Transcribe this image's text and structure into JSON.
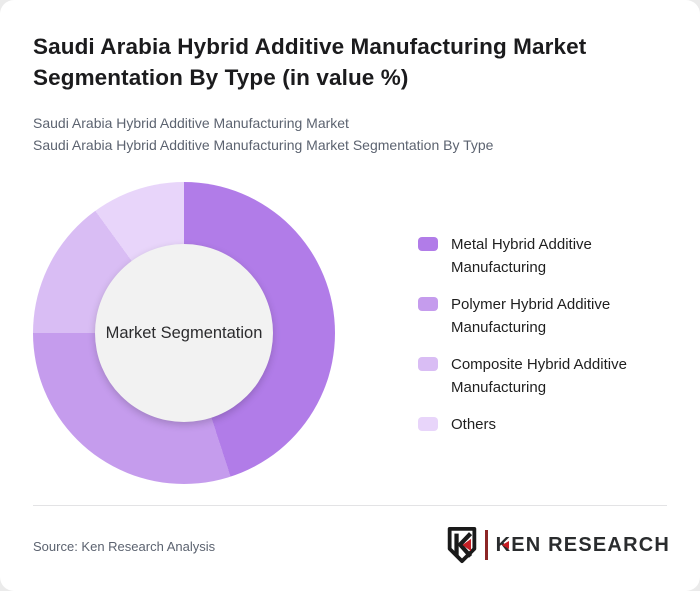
{
  "header": {
    "title": "Saudi Arabia Hybrid Additive Manufacturing Market Segmentation By Type (in value %)",
    "subtitle_line1": "Saudi Arabia Hybrid Additive Manufacturing Market",
    "subtitle_line2": "Saudi Arabia Hybrid Additive Manufacturing Market Segmentation By Type"
  },
  "chart_data": {
    "type": "pie",
    "variant": "donut",
    "title": "Saudi Arabia Hybrid Additive Manufacturing Market Segmentation By Type (in value %)",
    "unit": "value %",
    "center_label": "Market Segmentation",
    "legend_position": "right",
    "start_angle_deg": 0,
    "direction": "clockwise",
    "segments": [
      {
        "label": "Metal Hybrid Additive Manufacturing",
        "value": 45,
        "color": "#b17ce8"
      },
      {
        "label": "Polymer Hybrid Additive Manufacturing",
        "value": 30,
        "color": "#c59ced"
      },
      {
        "label": "Composite Hybrid Additive Manufacturing",
        "value": 15,
        "color": "#d9bdf4"
      },
      {
        "label": "Others",
        "value": 10,
        "color": "#e8d5fa"
      }
    ],
    "hole_color": "#f2f2f2"
  },
  "footer": {
    "source": "Source: Ken Research Analysis",
    "logo_text": "KEN RESEARCH"
  },
  "colors": {
    "card_background": "#ffffff",
    "page_background": "#ebebeb",
    "title_text": "#1b1b1d",
    "subtitle_text": "#5c6370",
    "legend_text": "#1f1f1f",
    "divider": "#e3e3e5",
    "logo_accent_red": "#c41e24",
    "logo_text_color": "#2a2c2e"
  }
}
